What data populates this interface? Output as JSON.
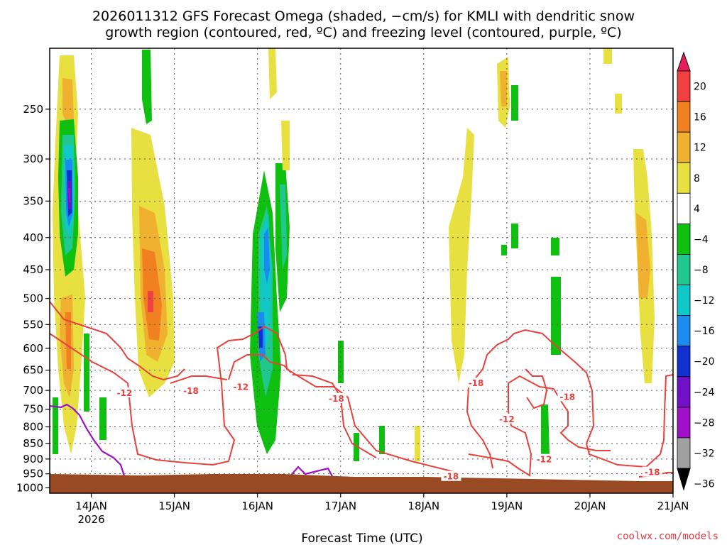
{
  "title_line1": "2026011312 GFS Forecast Omega (shaded, −cm/s) for KMLI with dendritic snow",
  "title_line2": "growth region (contoured, red, ºC) and freezing level (contoured, purple, ºC)",
  "credit": "coolwx.com/models",
  "chart_data": {
    "type": "heatmap",
    "title": "2026011312 GFS Forecast Omega (shaded, −cm/s) for KMLI with dendritic snow growth region (contoured, red, ºC) and freezing level (contoured, purple, ºC)",
    "xlabel": "Forecast Time (UTC)",
    "ylabel": "",
    "x_ticks": [
      {
        "t": 0.5,
        "label": "14JAN",
        "sublabel": "2026"
      },
      {
        "t": 1.5,
        "label": "15JAN",
        "sublabel": ""
      },
      {
        "t": 2.5,
        "label": "16JAN",
        "sublabel": ""
      },
      {
        "t": 3.5,
        "label": "17JAN",
        "sublabel": ""
      },
      {
        "t": 4.5,
        "label": "18JAN",
        "sublabel": ""
      },
      {
        "t": 5.5,
        "label": "19JAN",
        "sublabel": ""
      },
      {
        "t": 6.5,
        "label": "20JAN",
        "sublabel": ""
      },
      {
        "t": 7.5,
        "label": "21JAN",
        "sublabel": ""
      }
    ],
    "x_range": [
      0,
      7.5
    ],
    "y_axis": {
      "scale": "log",
      "range": [
        1020,
        200
      ],
      "ticks": [
        250,
        300,
        350,
        400,
        450,
        500,
        550,
        600,
        650,
        700,
        750,
        800,
        850,
        900,
        950,
        1000
      ]
    },
    "grid": true,
    "colorbar": {
      "labels": [
        "20",
        "16",
        "12",
        "8",
        "4",
        "−4",
        "−8",
        "−12",
        "−16",
        "−20",
        "−24",
        "−28",
        "−32",
        "−36"
      ],
      "colors": [
        "#e81e5a",
        "#f04040",
        "#f08020",
        "#f0b030",
        "#e8e040",
        "#ffffff",
        "#10c010",
        "#20c890",
        "#10c8c8",
        "#1a8cf0",
        "#1030d0",
        "#7010c8",
        "#a010c8",
        "#a0a0a0",
        "#000000"
      ]
    },
    "ground_level_hpa": 985,
    "red_contour_labels": [
      {
        "t": 0.9,
        "p": 707,
        "v": "-12"
      },
      {
        "t": 1.7,
        "p": 702,
        "v": "-18"
      },
      {
        "t": 2.3,
        "p": 692,
        "v": "-12"
      },
      {
        "t": 3.45,
        "p": 722,
        "v": "-18"
      },
      {
        "t": 5.13,
        "p": 682,
        "v": "-18"
      },
      {
        "t": 5.5,
        "p": 778,
        "v": "-12"
      },
      {
        "t": 6.23,
        "p": 717,
        "v": "-18"
      },
      {
        "t": 5.95,
        "p": 902,
        "v": "-12"
      },
      {
        "t": 4.83,
        "p": 960,
        "v": "-18"
      },
      {
        "t": 7.25,
        "p": 945,
        "v": "-18"
      }
    ]
  }
}
